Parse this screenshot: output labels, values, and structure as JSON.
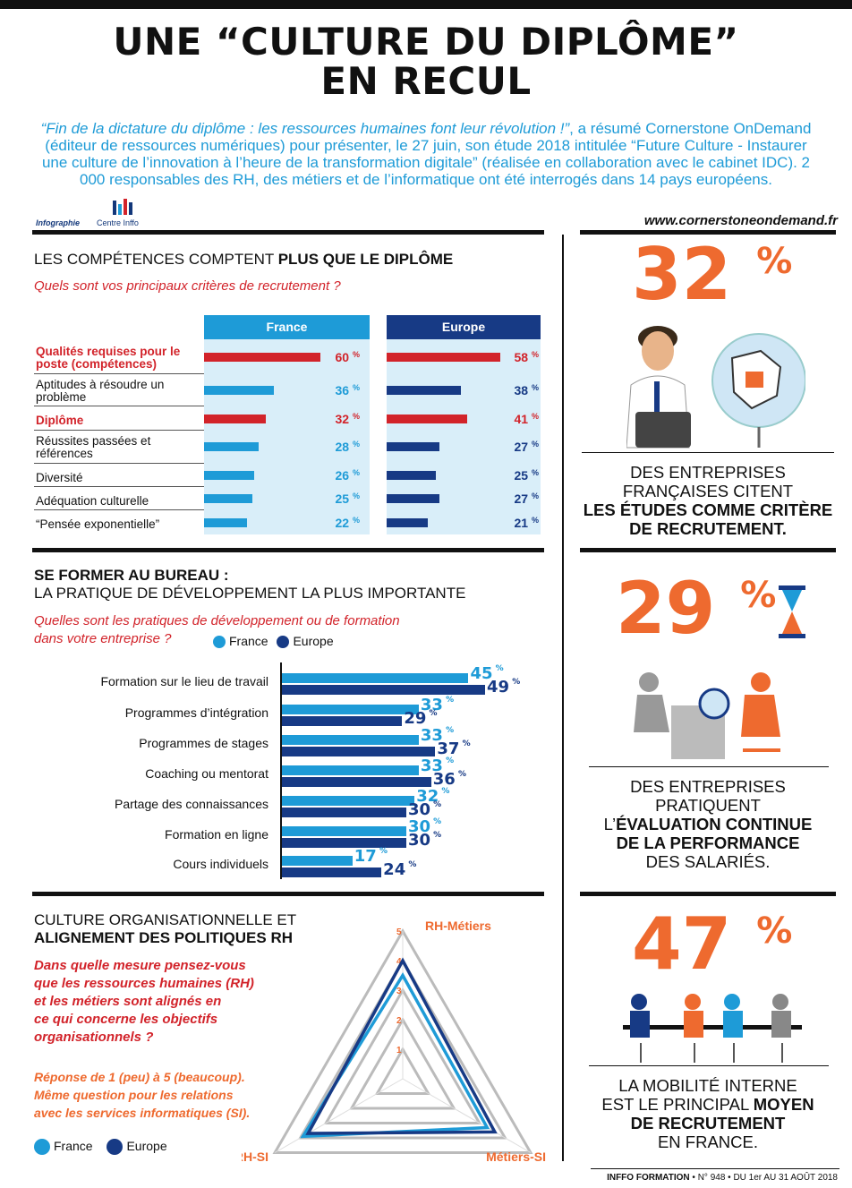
{
  "title_line1": "UNE “CULTURE DU DIPLÔME”",
  "title_line2": "EN RECUL",
  "intro": {
    "quote": "“Fin de la dictature du diplôme : les ressources humaines font leur révolution !”",
    "text": ", a résumé Cornerstone OnDemand (éditeur de ressources numériques) pour présenter, le 27 juin, son étude 2018 intitulée “Future Culture - Instaurer une culture de l’innovation à l’heure de la transformation digitale” (réalisée en collaboration avec le cabinet IDC). 2 000 responsables des RH, des métiers et de l’informatique ont été interrogés dans 14 pays européens."
  },
  "logo_tag": "Infographie",
  "logo_text": "Centre Inffo",
  "url": "www.cornerstoneondemand.fr",
  "colors": {
    "france": "#1e9bd7",
    "europe": "#173a85",
    "red": "#d2232a",
    "orange": "#ee6a2f"
  },
  "section1": {
    "heading_plain": "LES COMPÉTENCES COMPTENT ",
    "heading_bold": "PLUS QUE LE DIPLÔME",
    "question": "Quels sont vos principaux critères de recrutement ?",
    "col_france": "France",
    "col_europe": "Europe",
    "percent": "%"
  },
  "section2": {
    "heading_bold": "SE FORMER AU BUREAU :",
    "heading_plain": "LA PRATIQUE DE DÉVELOPPEMENT LA PLUS IMPORTANTE",
    "question_line1": "Quelles sont les pratiques de développement ou de formation",
    "question_line2": "dans votre entreprise ?",
    "legend_france": "France",
    "legend_europe": "Europe"
  },
  "section3": {
    "heading_plain": "CULTURE ORGANISATIONNELLE ET",
    "heading_bold": "ALIGNEMENT DES POLITIQUES RH",
    "question_lines": [
      "Dans quelle mesure pensez-vous",
      "que les ressources humaines (RH)",
      "et les métiers sont alignés en",
      "ce qui concerne les objectifs",
      "organisationnels ?"
    ],
    "note_lines": [
      "Réponse de 1 (peu) à 5 (beaucoup).",
      "Même question pour les relations",
      "avec les services informatiques (SI)."
    ],
    "legend_france": "France",
    "legend_europe": "Europe"
  },
  "stats": [
    {
      "number": "32",
      "pct": "%",
      "lines_plain": [
        "DES ENTREPRISES",
        "FRANÇAISES CITENT"
      ],
      "lines_bold": [
        "LES ÉTUDES COMME CRITÈRE",
        "DE RECRUTEMENT."
      ]
    },
    {
      "number": "29",
      "pct": "%",
      "line1": "DES ENTREPRISES",
      "line2": "PRATIQUENT",
      "line3_plain": "L’",
      "line3_bold": "ÉVALUATION CONTINUE",
      "line4_bold": "DE LA PERFORMANCE",
      "line5": "DES SALARIÉS."
    },
    {
      "number": "47",
      "pct": "%",
      "line1": "LA MOBILITÉ INTERNE",
      "line2_plain": "EST LE PRINCIPAL ",
      "line2_bold": "MOYEN",
      "line3_bold": "DE RECRUTEMENT",
      "line4": "EN FRANCE."
    }
  ],
  "footer": {
    "brand1": "INFFO",
    "brand2": "FORMATION",
    "rest": " • N° 948 • DU 1er AU 31 AOÛT 2018"
  },
  "chart_data": [
    {
      "type": "bar",
      "title": "Quels sont vos principaux critères de recrutement ?",
      "categories": [
        "Qualités requises pour le poste (compétences)",
        "Aptitudes à résoudre un problème",
        "Diplôme",
        "Réussites passées et références",
        "Diversité",
        "Adéquation culturelle",
        "“Pensée exponentielle”"
      ],
      "highlight": [
        true,
        false,
        true,
        false,
        false,
        false,
        false
      ],
      "series": [
        {
          "name": "France",
          "values": [
            60,
            36,
            32,
            28,
            26,
            25,
            22
          ]
        },
        {
          "name": "Europe",
          "values": [
            58,
            38,
            41,
            27,
            25,
            27,
            21
          ]
        }
      ],
      "value_labels": {
        "France": [
          "60",
          "36",
          "32",
          "28",
          "26",
          "25",
          "22"
        ],
        "Europe": [
          "58",
          "38",
          "41",
          "27",
          "25",
          "27",
          "21"
        ]
      }
    },
    {
      "type": "bar",
      "title": "Quelles sont les pratiques de développement ou de formation dans votre entreprise ?",
      "categories": [
        "Formation sur le lieu de travail",
        "Programmes d’intégration",
        "Programmes de stages",
        "Coaching ou mentorat",
        "Partage des connaissances",
        "Formation en ligne",
        "Cours individuels"
      ],
      "series": [
        {
          "name": "France",
          "values": [
            45,
            33,
            33,
            33,
            32,
            30,
            17
          ]
        },
        {
          "name": "Europe",
          "values": [
            49,
            29,
            37,
            36,
            30,
            30,
            24
          ]
        }
      ],
      "value_labels": {
        "France": [
          "45",
          "33",
          "33",
          "33",
          "32",
          "30",
          "17"
        ],
        "Europe": [
          "49",
          "29",
          "37",
          "36",
          "30",
          "30",
          "24"
        ]
      },
      "legend": "top"
    },
    {
      "type": "radar",
      "axes": [
        "RH-Métiers",
        "Métiers-SI",
        "RH-SI"
      ],
      "ticks": [
        "1",
        "2",
        "3",
        "4",
        "5"
      ],
      "range": [
        0,
        5
      ],
      "series": [
        {
          "name": "France",
          "values": [
            3.5,
            3.3,
            3.9
          ]
        },
        {
          "name": "Europe",
          "values": [
            4.0,
            3.6,
            3.7
          ]
        }
      ],
      "legend": "bottom-left"
    }
  ]
}
